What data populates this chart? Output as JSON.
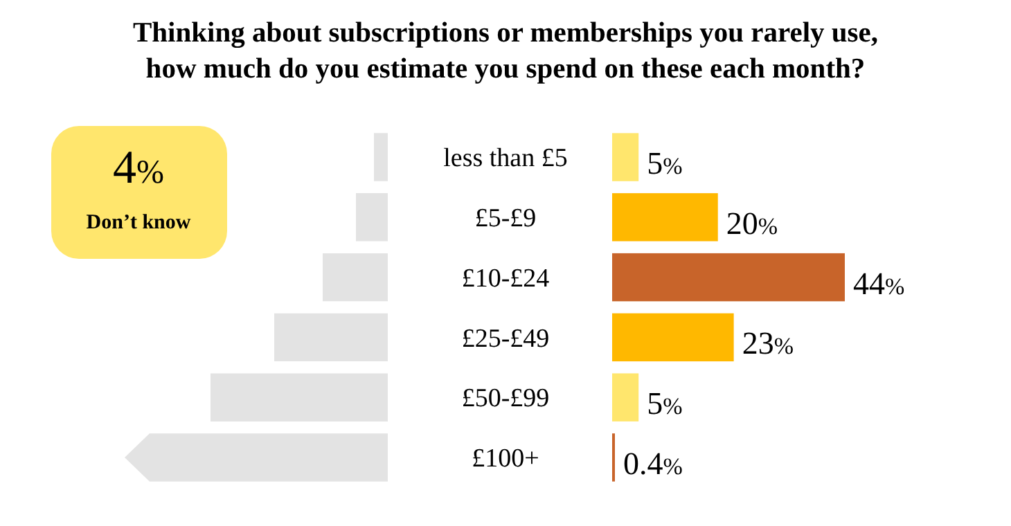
{
  "chart_data": {
    "type": "bar",
    "orientation": "horizontal",
    "title": "Thinking about subscriptions or memberships you rarely use, how much do you estimate you spend on these each month?",
    "categories": [
      "less than £5",
      "£5-£9",
      "£10-£24",
      "£25-£49",
      "£50-£99",
      "£100+"
    ],
    "values": [
      5,
      20,
      44,
      23,
      5,
      0.4
    ],
    "colors": [
      "#ffe66d",
      "#ffb800",
      "#c8642a",
      "#ffb800",
      "#ffe66d",
      "#c8642a"
    ],
    "value_labels": [
      "5%",
      "20%",
      "44%",
      "23%",
      "5%",
      "0.4%"
    ],
    "annotations": [
      "4%",
      "Don’t know"
    ]
  }
}
